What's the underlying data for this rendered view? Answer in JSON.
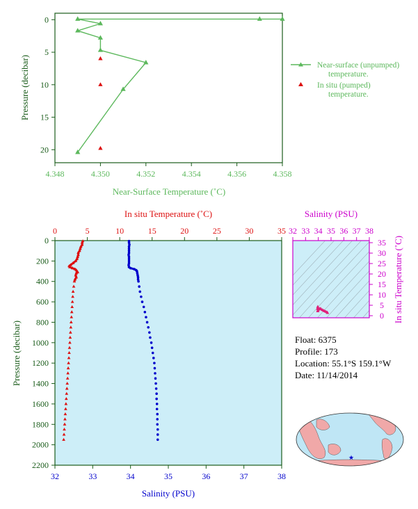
{
  "float_info": {
    "float": "Float:  6375",
    "profile": "Profile:  173",
    "location": "Location:  55.1°S  159.1°W",
    "date": "Date:  11/14/2014"
  },
  "colors": {
    "green": "#5cb85c",
    "axis_green": "#1a5c1a",
    "red": "#dd1111",
    "blue": "#0000cc",
    "magenta": "#cc00cc",
    "plot_bg": "#cdeef8",
    "map_ocean": "#bfe6f5",
    "map_land": "#f0a8a8"
  },
  "chart_data": [
    {
      "type": "line",
      "xlabel": "Near-Surface Temperature (˚C)",
      "ylabel": "Pressure (decibar)",
      "xlim": [
        4.348,
        4.358
      ],
      "ylim": [
        22,
        -1
      ],
      "xticks": [
        "4.348",
        "4.350",
        "4.352",
        "4.354",
        "4.356",
        "4.358"
      ],
      "yticks": [
        "0",
        "5",
        "10",
        "15",
        "20"
      ],
      "legend": {
        "position": "right",
        "entries": [
          "Near-surface (unpumped) temperature.",
          "In situ (pumped) temperature."
        ]
      },
      "series": [
        {
          "name": "Near-surface (unpumped) temperature.",
          "x": [
            4.358,
            4.357,
            4.349,
            4.35,
            4.349,
            4.35,
            4.35,
            4.352,
            4.351,
            4.349
          ],
          "y": [
            -0.1,
            -0.1,
            -0.1,
            0.6,
            1.7,
            2.8,
            4.7,
            6.6,
            10.7,
            20.4
          ]
        },
        {
          "name": "In situ (pumped) temperature.",
          "x": [
            4.35,
            4.35,
            4.35
          ],
          "y": [
            6.0,
            10.0,
            19.8
          ]
        }
      ]
    },
    {
      "type": "line",
      "xlabel_top": "In situ Temperature (˚C)",
      "xlabel_bottom": "Salinity (PSU)",
      "ylabel": "Pressure (decibar)",
      "ylim": [
        2200,
        0
      ],
      "temp_lim": [
        0,
        35
      ],
      "sal_lim": [
        32,
        38
      ],
      "temp_ticks": [
        "0",
        "5",
        "10",
        "15",
        "20",
        "25",
        "30",
        "35"
      ],
      "sal_ticks": [
        "32",
        "33",
        "34",
        "35",
        "36",
        "37",
        "38"
      ],
      "yticks": [
        "0",
        "200",
        "400",
        "600",
        "800",
        "1000",
        "1200",
        "1400",
        "1600",
        "1800",
        "2000",
        "2200"
      ],
      "temperature_profile": {
        "pressure": [
          5,
          20,
          40,
          60,
          80,
          100,
          120,
          140,
          160,
          180,
          200,
          220,
          240,
          250,
          260,
          270,
          280,
          290,
          300,
          310,
          320,
          340,
          360,
          380,
          400,
          450,
          500,
          550,
          600,
          650,
          700,
          750,
          800,
          850,
          900,
          950,
          1000,
          1050,
          1100,
          1150,
          1200,
          1250,
          1300,
          1350,
          1400,
          1450,
          1500,
          1550,
          1600,
          1650,
          1700,
          1750,
          1800,
          1850,
          1900,
          1950
        ],
        "temperature": [
          4.3,
          4.2,
          4.2,
          4.0,
          3.9,
          3.8,
          3.6,
          3.6,
          3.5,
          3.4,
          3.2,
          2.8,
          2.4,
          2.2,
          2.3,
          2.7,
          3.1,
          3.3,
          3.4,
          3.5,
          3.3,
          3.2,
          3.3,
          3.1,
          3.0,
          2.9,
          2.8,
          2.75,
          2.7,
          2.65,
          2.6,
          2.55,
          2.5,
          2.45,
          2.4,
          2.35,
          2.3,
          2.25,
          2.2,
          2.15,
          2.1,
          2.05,
          2.0,
          1.95,
          1.9,
          1.85,
          1.8,
          1.75,
          1.7,
          1.65,
          1.6,
          1.55,
          1.5,
          1.45,
          1.4,
          1.35
        ]
      },
      "salinity_profile": {
        "pressure": [
          5,
          20,
          40,
          60,
          80,
          100,
          120,
          140,
          160,
          180,
          200,
          220,
          240,
          260,
          270,
          280,
          290,
          300,
          320,
          340,
          360,
          380,
          400,
          450,
          500,
          550,
          600,
          650,
          700,
          750,
          800,
          850,
          900,
          950,
          1000,
          1050,
          1100,
          1150,
          1200,
          1250,
          1300,
          1350,
          1400,
          1450,
          1500,
          1550,
          1600,
          1650,
          1700,
          1750,
          1800,
          1850,
          1900,
          1950
        ],
        "salinity": [
          33.96,
          33.96,
          33.97,
          33.96,
          33.96,
          33.96,
          33.96,
          33.95,
          33.96,
          33.96,
          33.96,
          33.96,
          33.95,
          33.96,
          34.0,
          34.1,
          34.15,
          34.17,
          34.18,
          34.19,
          34.2,
          34.2,
          34.21,
          34.23,
          34.25,
          34.28,
          34.31,
          34.35,
          34.38,
          34.41,
          34.44,
          34.47,
          34.5,
          34.52,
          34.55,
          34.57,
          34.59,
          34.61,
          34.63,
          34.64,
          34.65,
          34.66,
          34.67,
          34.68,
          34.69,
          34.69,
          34.7,
          34.7,
          34.71,
          34.71,
          34.71,
          34.72,
          34.72,
          34.72
        ]
      }
    },
    {
      "type": "scatter",
      "xlabel": "Salinity (PSU)",
      "ylabel": "In situ Temperature (˚C)",
      "xlim": [
        32,
        38
      ],
      "ylim": [
        -1,
        36
      ],
      "xticks": [
        "32",
        "33",
        "34",
        "35",
        "36",
        "37",
        "38"
      ],
      "yticks": [
        "0",
        "5",
        "10",
        "15",
        "20",
        "25",
        "30",
        "35"
      ],
      "points": {
        "salinity": [
          33.96,
          33.96,
          33.95,
          33.96,
          33.96,
          34.0,
          34.1,
          34.18,
          34.2,
          34.3,
          34.4,
          34.5,
          34.6,
          34.7,
          34.72
        ],
        "temperature": [
          4.3,
          3.8,
          3.2,
          2.4,
          2.2,
          2.8,
          3.3,
          3.4,
          3.2,
          2.8,
          2.5,
          2.2,
          1.9,
          1.6,
          1.35
        ]
      }
    }
  ],
  "map": {
    "marker_label": "★"
  }
}
